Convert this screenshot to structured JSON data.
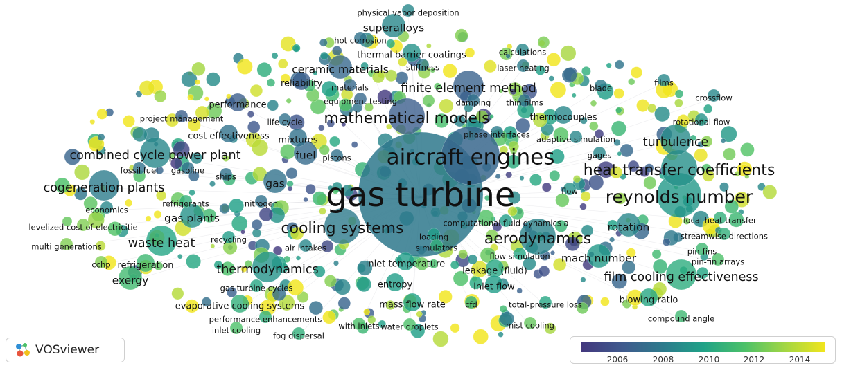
{
  "app": {
    "name": "VOSviewer"
  },
  "overlay": {
    "colors": [
      "#43387e",
      "#3f5a8d",
      "#2c7c8c",
      "#1fa287",
      "#4cc169",
      "#a5d742",
      "#f2e51c"
    ],
    "ticks": [
      "2006",
      "2008",
      "2010",
      "2012",
      "2014"
    ]
  },
  "terms": [
    {
      "text": "gas turbine",
      "weight": 10,
      "year": 2008.3
    },
    {
      "text": "aircraft engines",
      "weight": 7,
      "year": 2007.4
    },
    {
      "text": "reynolds number",
      "weight": 6,
      "year": 2009.8
    },
    {
      "text": "heat transfer coefficients",
      "weight": 5,
      "year": 2009.4
    },
    {
      "text": "aerodynamics",
      "weight": 5,
      "year": 2008.8
    },
    {
      "text": "cooling systems",
      "weight": 5,
      "year": 2008.4
    },
    {
      "text": "mathematical models",
      "weight": 5,
      "year": 2007.0
    },
    {
      "text": "combined cycle power plant",
      "weight": 4,
      "year": 2009.0
    },
    {
      "text": "cogeneration plants",
      "weight": 4,
      "year": 2008.5
    },
    {
      "text": "waste heat",
      "weight": 4,
      "year": 2010.4
    },
    {
      "text": "thermodynamics",
      "weight": 4,
      "year": 2009.6
    },
    {
      "text": "film cooling effectiveness",
      "weight": 4,
      "year": 2010.8
    },
    {
      "text": "turbulence",
      "weight": 4,
      "year": 2009.2
    },
    {
      "text": "finite element method",
      "weight": 4,
      "year": 2007.2
    },
    {
      "text": "exergy",
      "weight": 3,
      "year": 2011.6
    },
    {
      "text": "superalloys",
      "weight": 3,
      "year": 2009.0
    },
    {
      "text": "ceramic materials",
      "weight": 3,
      "year": 2007.5
    },
    {
      "text": "gas plants",
      "weight": 3,
      "year": 2009.5
    },
    {
      "text": "rotation",
      "weight": 3,
      "year": 2009.0
    },
    {
      "text": "mach number",
      "weight": 3,
      "year": 2009.8
    },
    {
      "text": "fuel",
      "weight": 3,
      "year": 2007.6
    },
    {
      "text": "gas",
      "weight": 3,
      "year": 2008.0
    },
    {
      "text": "thermal barrier coatings",
      "weight": 2,
      "year": 2009.5
    },
    {
      "text": "cost effectiveness",
      "weight": 2,
      "year": 2008.0
    },
    {
      "text": "thermocouples",
      "weight": 2,
      "year": 2009.0
    },
    {
      "text": "evaporative cooling systems",
      "weight": 2,
      "year": 2011.0
    },
    {
      "text": "inlet temperature",
      "weight": 2,
      "year": 2010.0
    },
    {
      "text": "leakage (fluid)",
      "weight": 2,
      "year": 2010.5
    },
    {
      "text": "blowing ratio",
      "weight": 2,
      "year": 2010.5
    },
    {
      "text": "refrigeration",
      "weight": 2,
      "year": 2011.5
    },
    {
      "text": "performance",
      "weight": 2,
      "year": 2007.0
    },
    {
      "text": "reliability",
      "weight": 2,
      "year": 2007.0
    },
    {
      "text": "mixtures",
      "weight": 2,
      "year": 2008.0
    },
    {
      "text": "entropy",
      "weight": 2,
      "year": 2010.0
    },
    {
      "text": "mass flow rate",
      "weight": 2,
      "year": 2010.2
    },
    {
      "text": "inlet flow",
      "weight": 2,
      "year": 2010.0
    },
    {
      "text": "local heat transfer",
      "weight": 1,
      "year": 2011.0
    },
    {
      "text": "streamwise directions",
      "weight": 1,
      "year": 2011.0
    },
    {
      "text": "pin-fins",
      "weight": 1,
      "year": 2011.5
    },
    {
      "text": "pin-fin arrays",
      "weight": 1,
      "year": 2012.0
    },
    {
      "text": "compound angle",
      "weight": 1,
      "year": 2011.5
    },
    {
      "text": "total-pressure loss",
      "weight": 1,
      "year": 2010.5
    },
    {
      "text": "cfd",
      "weight": 1,
      "year": 2011.0
    },
    {
      "text": "mist cooling",
      "weight": 1,
      "year": 2012.5
    },
    {
      "text": "water droplets",
      "weight": 1,
      "year": 2012.0
    },
    {
      "text": "with inlets",
      "weight": 1,
      "year": 2012.0
    },
    {
      "text": "fog dispersal",
      "weight": 1,
      "year": 2011.0
    },
    {
      "text": "inlet cooling",
      "weight": 1,
      "year": 2012.0
    },
    {
      "text": "performance enhancements",
      "weight": 1,
      "year": 2011.0
    },
    {
      "text": "gas turbine cycles",
      "weight": 1,
      "year": 2010.5
    },
    {
      "text": "cchp",
      "weight": 1,
      "year": 2013.0
    },
    {
      "text": "multi generations",
      "weight": 1,
      "year": 2013.0
    },
    {
      "text": "levelized cost of electricitie",
      "weight": 1,
      "year": 2013.0
    },
    {
      "text": "economics",
      "weight": 1,
      "year": 2009.0
    },
    {
      "text": "refrigerants",
      "weight": 1,
      "year": 2011.0
    },
    {
      "text": "nitrogen",
      "weight": 1,
      "year": 2008.0
    },
    {
      "text": "recycling",
      "weight": 1,
      "year": 2010.0
    },
    {
      "text": "air intakes",
      "weight": 1,
      "year": 2009.0
    },
    {
      "text": "fossil fuel",
      "weight": 1,
      "year": 2008.0
    },
    {
      "text": "gasoline",
      "weight": 1,
      "year": 2008.0
    },
    {
      "text": "ships",
      "weight": 1,
      "year": 2008.0
    },
    {
      "text": "pistons",
      "weight": 1,
      "year": 2008.0
    },
    {
      "text": "project management",
      "weight": 1,
      "year": 2007.0
    },
    {
      "text": "life cycle",
      "weight": 1,
      "year": 2008.0
    },
    {
      "text": "equipment testing",
      "weight": 1,
      "year": 2007.5
    },
    {
      "text": "materials",
      "weight": 1,
      "year": 2007.5
    },
    {
      "text": "stiffness",
      "weight": 1,
      "year": 2008.5
    },
    {
      "text": "laser heating",
      "weight": 1,
      "year": 2008.5
    },
    {
      "text": "calculations",
      "weight": 1,
      "year": 2009.0
    },
    {
      "text": "hot corrosion",
      "weight": 1,
      "year": 2008.0
    },
    {
      "text": "physical vapor deposition",
      "weight": 1,
      "year": 2009.0
    },
    {
      "text": "damping",
      "weight": 1,
      "year": 2008.0
    },
    {
      "text": "thin films",
      "weight": 1,
      "year": 2008.0
    },
    {
      "text": "phase interfaces",
      "weight": 1,
      "year": 2008.5
    },
    {
      "text": "adaptive simulation",
      "weight": 1,
      "year": 2009.0
    },
    {
      "text": "gages",
      "weight": 1,
      "year": 2009.0
    },
    {
      "text": "rotational flow",
      "weight": 1,
      "year": 2009.5
    },
    {
      "text": "blade",
      "weight": 1,
      "year": 2008.5
    },
    {
      "text": "films",
      "weight": 1,
      "year": 2009.0
    },
    {
      "text": "crossflow",
      "weight": 1,
      "year": 2009.0
    },
    {
      "text": "flow",
      "weight": 1,
      "year": 2009.5
    },
    {
      "text": "computational fluid dynamics a",
      "weight": 1,
      "year": 2010.0
    },
    {
      "text": "loading",
      "weight": 1,
      "year": 2010.0
    },
    {
      "text": "simulators",
      "weight": 1,
      "year": 2011.0
    },
    {
      "text": "flow simulation",
      "weight": 1,
      "year": 2010.5
    }
  ]
}
